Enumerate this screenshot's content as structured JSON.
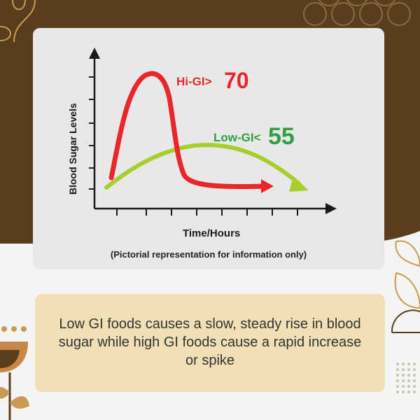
{
  "colors": {
    "brown": "#5a3d1d",
    "hi_gi": "#e8262c",
    "low_gi": "#a6cf2d",
    "low_gi_label": "#2ea043",
    "card": "#e8e8e9",
    "info": "#f1dfb6"
  },
  "caption": "(Pictorial representation for information only)",
  "info_text": "Low GI foods causes a slow, steady rise in blood sugar while high GI foods cause a rapid increase or spike",
  "chart_data": {
    "type": "line",
    "xlabel": "Time/Hours",
    "ylabel": "Blood Sugar Levels",
    "grid": false,
    "legend": "inline",
    "series": [
      {
        "name": "Hi-GI>",
        "label_value": "70",
        "color": "#e8262c"
      },
      {
        "name": "Low-GI<",
        "label_value": "55",
        "color": "#a6cf2d"
      }
    ]
  }
}
